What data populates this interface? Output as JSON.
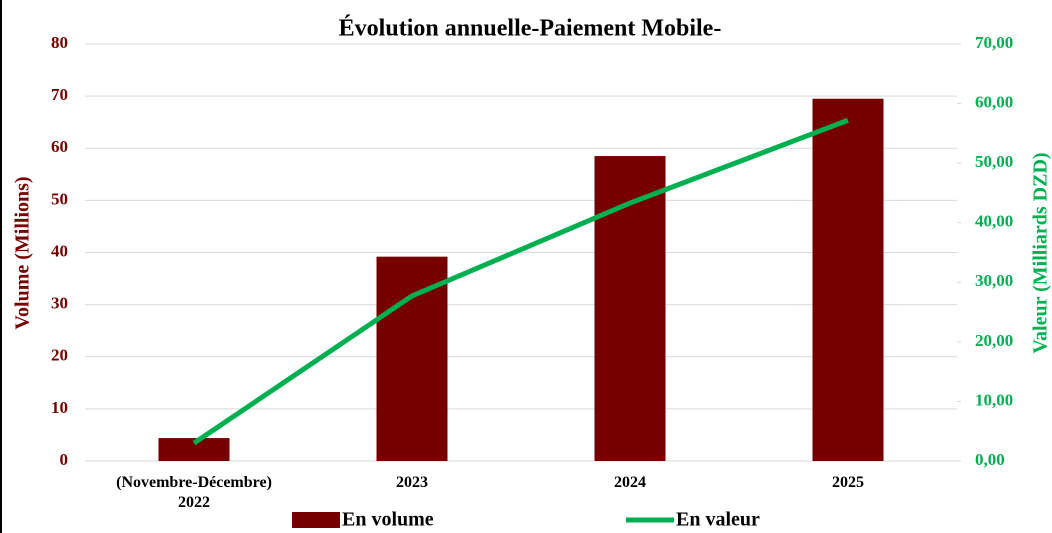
{
  "chart_data": {
    "type": "bar_line",
    "title": "Évolution annuelle-Paiement Mobile-",
    "y_label": "Volume (Millions)",
    "y2_label": "Valeur  (Milliards  DZD)",
    "categories": [
      "(Novembre-Décembre)\n2022",
      "2023",
      "2024",
      "2025"
    ],
    "series": [
      {
        "name": "En volume",
        "color": "#760000",
        "type": "bar",
        "values": [
          4.4,
          39.2,
          58.5,
          69.5
        ]
      },
      {
        "name": "En valeur",
        "color": "#00b050",
        "type": "line",
        "axis": "y2",
        "values": [
          3.0,
          27.7,
          43.3,
          57.2
        ]
      }
    ],
    "ylim": [
      0,
      80
    ],
    "yticks": [
      0,
      10,
      20,
      30,
      40,
      50,
      60,
      70,
      80
    ],
    "y2lim": [
      0,
      70
    ],
    "y2ticks": [
      {
        "value": 0,
        "label": "0,00"
      },
      {
        "value": 10,
        "label": "10,00"
      },
      {
        "value": 20,
        "label": "20,00"
      },
      {
        "value": 30,
        "label": "30,00"
      },
      {
        "value": 40,
        "label": "40,00"
      },
      {
        "value": 50,
        "label": "50,00"
      },
      {
        "value": 60,
        "label": "60,00"
      },
      {
        "value": 70,
        "label": "70,00"
      }
    ],
    "grid": true,
    "legend": "bottom"
  }
}
